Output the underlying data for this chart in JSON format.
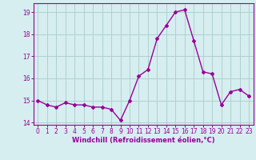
{
  "x": [
    0,
    1,
    2,
    3,
    4,
    5,
    6,
    7,
    8,
    9,
    10,
    11,
    12,
    13,
    14,
    15,
    16,
    17,
    18,
    19,
    20,
    21,
    22,
    23
  ],
  "y": [
    15.0,
    14.8,
    14.7,
    14.9,
    14.8,
    14.8,
    14.7,
    14.7,
    14.6,
    14.1,
    15.0,
    16.1,
    16.4,
    17.8,
    18.4,
    19.0,
    19.1,
    17.7,
    16.3,
    16.2,
    14.8,
    15.4,
    15.5,
    15.2
  ],
  "line_color": "#990099",
  "marker": "D",
  "marker_size": 2.0,
  "bg_color": "#d6eef0",
  "grid_color": "#aacccc",
  "xlabel": "Windchill (Refroidissement éolien,°C)",
  "xlabel_color": "#990099",
  "tick_color": "#990099",
  "ylim": [
    13.9,
    19.4
  ],
  "yticks": [
    14,
    15,
    16,
    17,
    18,
    19
  ],
  "xticks": [
    0,
    1,
    2,
    3,
    4,
    5,
    6,
    7,
    8,
    9,
    10,
    11,
    12,
    13,
    14,
    15,
    16,
    17,
    18,
    19,
    20,
    21,
    22,
    23
  ],
  "spine_color": "#990099",
  "line_width": 1.0,
  "tick_fontsize": 5.5,
  "xlabel_fontsize": 6.0,
  "xlabel_fontweight": "bold"
}
